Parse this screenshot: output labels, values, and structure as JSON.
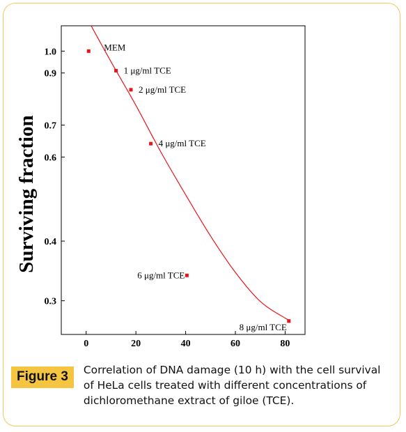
{
  "card": {
    "border_color": "#f0c95a"
  },
  "caption": {
    "label": "Figure 3",
    "label_color": "#f5c542",
    "text": "Correlation of DNA damage (10 h) with the cell survival of HeLa cells treated with different concentrations of dichloromethane extract of giloe (TCE)."
  },
  "chart_data": {
    "type": "scatter",
    "title": "",
    "xlabel": "",
    "ylabel": "Surviving fraction",
    "x_ticks": [
      0,
      20,
      40,
      60,
      80
    ],
    "xlim": [
      -10,
      88
    ],
    "y_scale": "log",
    "y_ticks": [
      1.0,
      0.9,
      0.7,
      0.6,
      0.4,
      0.3
    ],
    "y_tick_labels": [
      "1.0",
      "0.9",
      "0.7",
      "0.6",
      "0.4",
      "0.3"
    ],
    "ylim": [
      0.255,
      1.13
    ],
    "grid": false,
    "marker_color": "#e8141b",
    "fit_color": "#e8141b",
    "series": [
      {
        "points": [
          {
            "x": 1,
            "y": 1.0,
            "label": "MEM"
          },
          {
            "x": 12,
            "y": 0.91,
            "label": "1 μg/ml TCE"
          },
          {
            "x": 18,
            "y": 0.83,
            "label": "2 μg/ml TCE"
          },
          {
            "x": 26,
            "y": 0.64,
            "label": "4 μg/ml TCE"
          },
          {
            "x": 40.5,
            "y": 0.339,
            "label": "6 μg/ml TCE"
          },
          {
            "x": 81.5,
            "y": 0.272,
            "label": "8 μg/ml TCE"
          }
        ]
      }
    ],
    "fit_curve": {
      "x": [
        2,
        10,
        20,
        30,
        40,
        50,
        60,
        70,
        80,
        82
      ],
      "y": [
        1.13,
        0.95,
        0.77,
        0.615,
        0.5,
        0.41,
        0.344,
        0.299,
        0.276,
        0.274
      ]
    }
  }
}
